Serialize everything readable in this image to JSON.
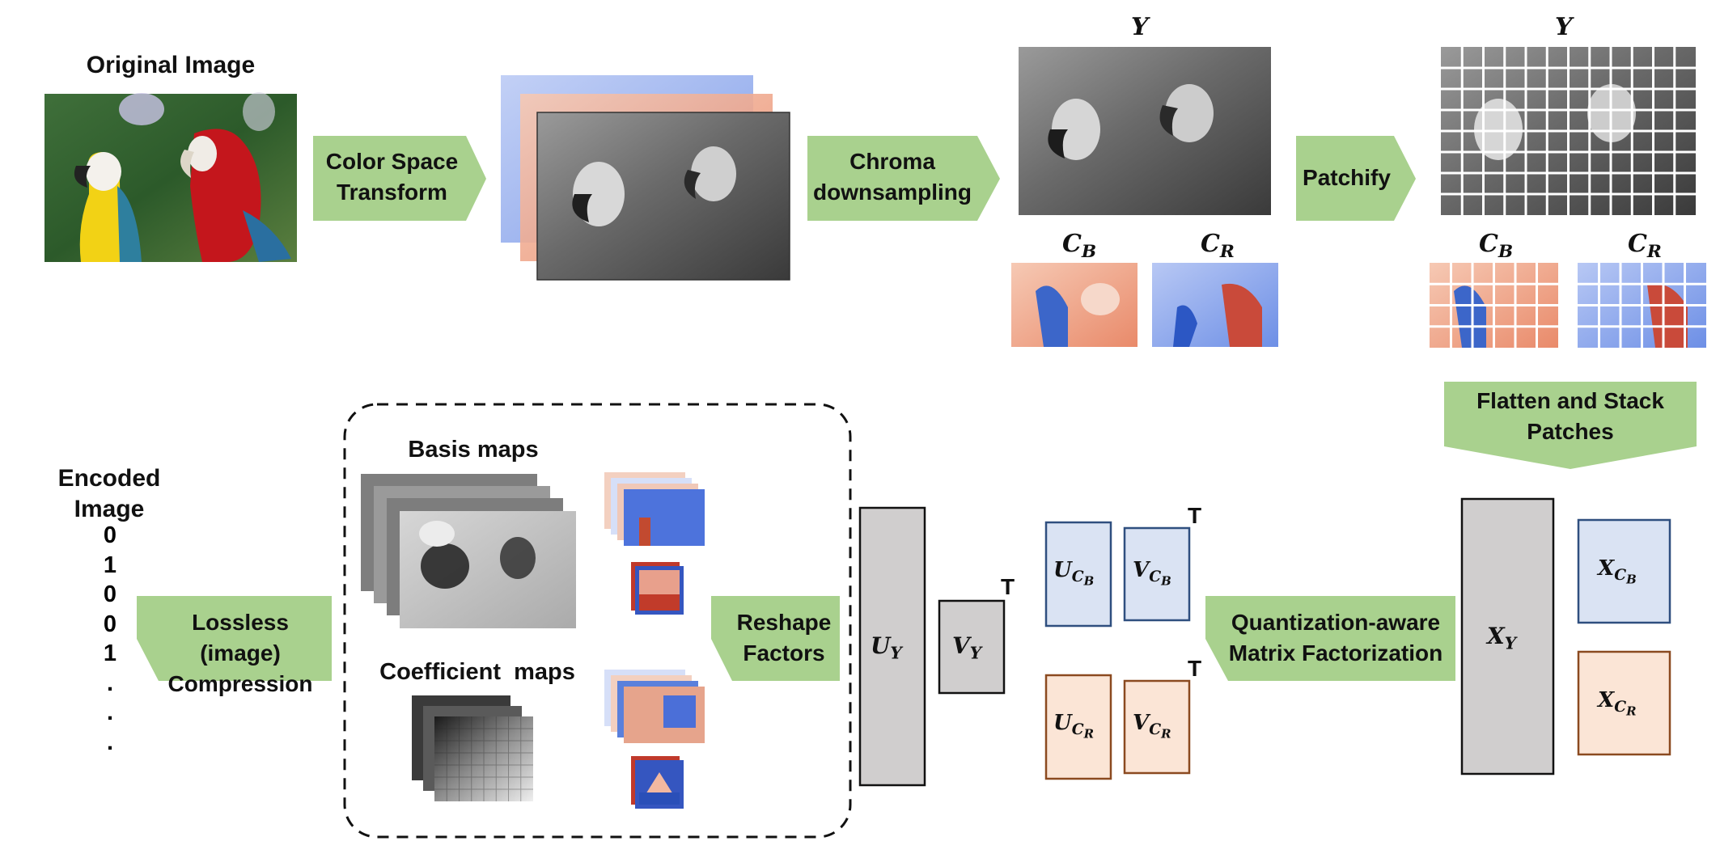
{
  "labels": {
    "original_image": "Original Image",
    "encoded_image": "Encoded Image",
    "basis_maps": "Basis maps",
    "coefficient_maps": "Coefficient  maps"
  },
  "steps": {
    "color_space_transform": "Color Space Transform",
    "chroma_downsampling": "Chroma downsampling",
    "patchify": "Patchify",
    "flatten_stack": "Flatten and Stack Patches",
    "quantization_mf": "Quantization-aware Matrix Factorization",
    "reshape_factors": "Reshape Factors",
    "lossless_compression": "Lossless (image) Compression"
  },
  "symbols": {
    "Y": "Y",
    "CB": "C",
    "CR": "C",
    "B": "B",
    "R": "R",
    "transpose": "T",
    "U": "U",
    "V": "V",
    "X": "X"
  },
  "bitstream": [
    "0",
    "1",
    "0",
    "0",
    "1",
    ".",
    ".",
    "."
  ],
  "colors": {
    "arrow_green": "#a9d18e",
    "luma_gray": "#d0cece",
    "cb_blue": "#dae3f3",
    "cb_border": "#2f4f7f",
    "cr_orange": "#fbe5d6",
    "cr_border": "#8b4a20"
  }
}
